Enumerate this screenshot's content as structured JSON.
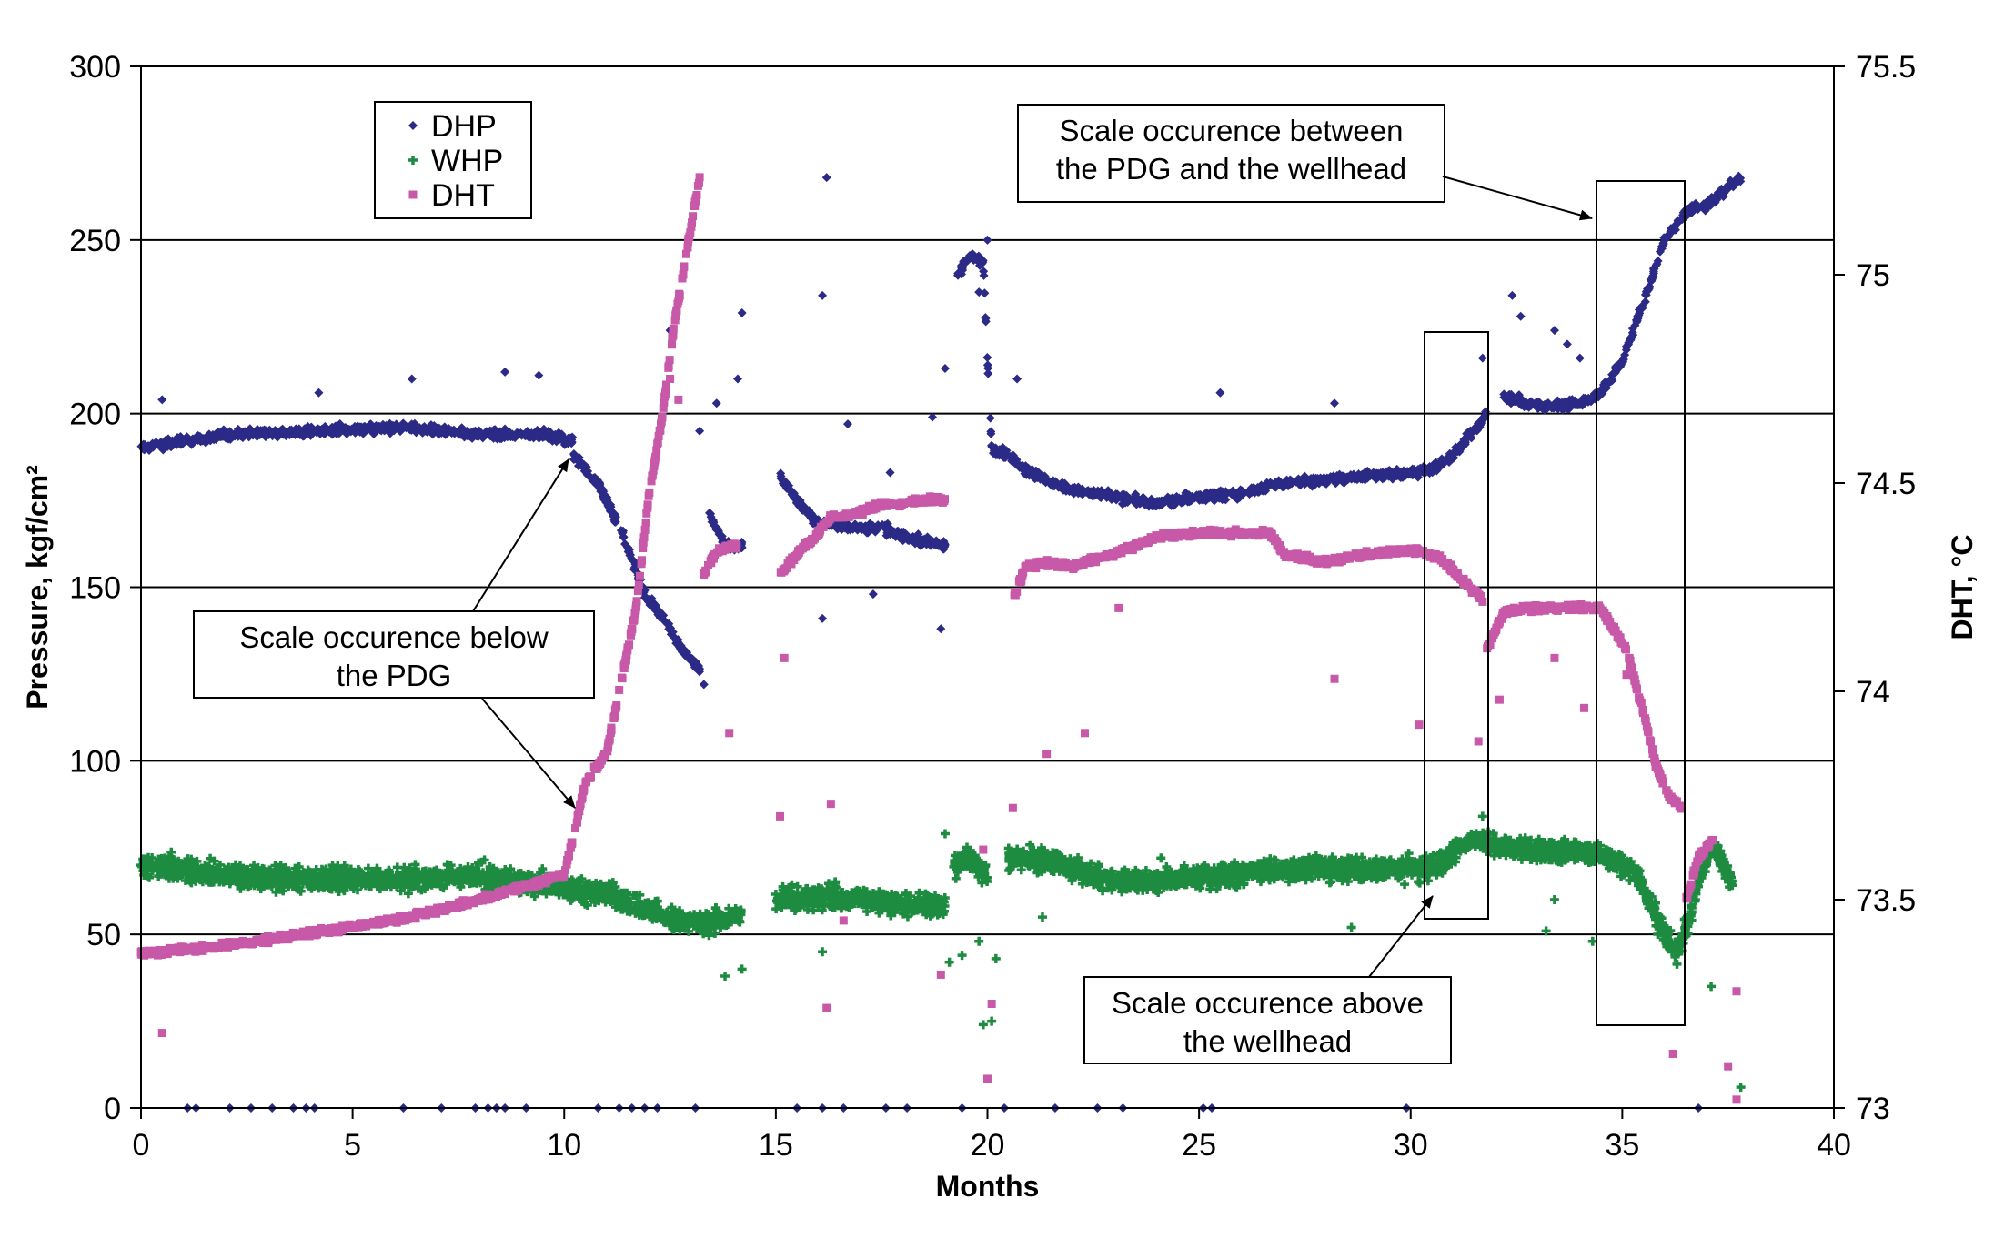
{
  "chart_data": {
    "type": "scatter",
    "title": "",
    "xlabel": "Months",
    "ylabel": "Pressure, kgf/cm²",
    "y2label": "DHT, °C",
    "xlim": [
      0,
      40
    ],
    "ylim": [
      0,
      300
    ],
    "y2lim": [
      73,
      75.5
    ],
    "xticks": [
      "0",
      "5",
      "10",
      "15",
      "20",
      "25",
      "30",
      "35",
      "40"
    ],
    "yticks": [
      "0",
      "50",
      "100",
      "150",
      "200",
      "250",
      "300"
    ],
    "y2ticks": [
      "73",
      "73.5",
      "74",
      "74.5",
      "75",
      "75.5"
    ],
    "grid": "horizontal",
    "legend_position": "top-left",
    "series": [
      {
        "name": "DHP",
        "axis": "left",
        "color": "#2b2a86",
        "marker": "diamond",
        "segments": [
          {
            "x": [
              0,
              2,
              4,
              6,
              8,
              9.5,
              10.2
            ],
            "y": [
              190,
              194,
              195,
              196,
              194,
              194,
              192
            ]
          },
          {
            "x": [
              10.2,
              10.8,
              11.4,
              11.9,
              12.4,
              12.8,
              13.2
            ],
            "y": [
              188,
              180,
              165,
              148,
              140,
              132,
              126
            ]
          },
          {
            "x": [
              13.4,
              13.8,
              14.2
            ],
            "y": [
              172,
              162,
              162
            ]
          },
          {
            "x": [
              15.1,
              15.5,
              16,
              16.5,
              17,
              17.5,
              18,
              18.5,
              19
            ],
            "y": [
              182,
              175,
              168,
              168,
              167,
              167,
              165,
              163,
              162
            ]
          },
          {
            "x": [
              19.3,
              19.6,
              19.9,
              20.1,
              20.5,
              21,
              22,
              23,
              24,
              25,
              26,
              27,
              28,
              29,
              30,
              30.5,
              31,
              31.5,
              31.8
            ],
            "y": [
              240,
              246,
              243,
              190,
              188,
              183,
              178,
              176,
              174,
              176,
              177,
              180,
              181,
              182,
              183,
              184,
              188,
              195,
              200
            ]
          },
          {
            "x": [
              32.2,
              32.7,
              33.2,
              34,
              34.5,
              35,
              35.5,
              36,
              36.5,
              37,
              37.5,
              37.8
            ],
            "y": [
              205,
              203,
              202,
              203,
              206,
              215,
              232,
              250,
              258,
              260,
              265,
              268
            ]
          }
        ],
        "outliers": [
          {
            "x": 16.2,
            "y": 268
          },
          {
            "x": 16.1,
            "y": 234
          },
          {
            "x": 14.2,
            "y": 229
          },
          {
            "x": 14.1,
            "y": 210
          },
          {
            "x": 20,
            "y": 250
          },
          {
            "x": 19.8,
            "y": 235
          },
          {
            "x": 19,
            "y": 213
          },
          {
            "x": 32.4,
            "y": 234
          },
          {
            "x": 32.6,
            "y": 228
          },
          {
            "x": 33.4,
            "y": 224
          },
          {
            "x": 33.7,
            "y": 220
          },
          {
            "x": 34,
            "y": 216
          },
          {
            "x": 31.7,
            "y": 216
          },
          {
            "x": 25.5,
            "y": 206
          },
          {
            "x": 28.2,
            "y": 203
          },
          {
            "x": 20.7,
            "y": 210
          },
          {
            "x": 13.3,
            "y": 122
          },
          {
            "x": 13.2,
            "y": 195
          },
          {
            "x": 12.5,
            "y": 224
          },
          {
            "x": 13.6,
            "y": 203
          },
          {
            "x": 16.1,
            "y": 141
          },
          {
            "x": 18.9,
            "y": 138
          },
          {
            "x": 17.3,
            "y": 148
          },
          {
            "x": 16.7,
            "y": 197
          },
          {
            "x": 17.7,
            "y": 183
          },
          {
            "x": 18.7,
            "y": 199
          },
          {
            "x": 8.6,
            "y": 212
          },
          {
            "x": 9.4,
            "y": 211
          },
          {
            "x": 6.4,
            "y": 210
          },
          {
            "x": 4.2,
            "y": 206
          },
          {
            "x": 0.5,
            "y": 204
          }
        ],
        "zeros": [
          1.1,
          1.3,
          2.1,
          2.6,
          3.1,
          3.6,
          3.9,
          4.1,
          6.2,
          7.1,
          7.9,
          8.2,
          8.4,
          8.6,
          9.1,
          10.8,
          11.3,
          11.6,
          11.9,
          12.2,
          13.1,
          15.5,
          16.1,
          16.6,
          17.6,
          18.1,
          19.4,
          20.4,
          21.6,
          22.6,
          23.2,
          25.1,
          25.3,
          29.9,
          36.8
        ]
      },
      {
        "name": "WHP",
        "axis": "left",
        "color": "#1e8c40",
        "marker": "cross",
        "segments": [
          {
            "x": [
              0,
              2,
              4,
              6,
              8,
              10,
              11,
              12,
              13,
              14.2
            ],
            "y": [
              70,
              67,
              66,
              66,
              67,
              63,
              62,
              57,
              53,
              55
            ]
          },
          {
            "x": [
              15,
              16,
              17,
              18,
              19
            ],
            "y": [
              60,
              61,
              60,
              59,
              58
            ]
          },
          {
            "x": [
              19.2,
              19.6,
              20
            ],
            "y": [
              70,
              72,
              66
            ]
          },
          {
            "x": [
              20.5,
              21.5,
              22.5,
              23.5,
              24.5,
              25.5,
              26.5,
              27.5,
              28.5,
              29.5,
              30.5,
              31.2,
              31.6,
              32,
              33,
              34,
              34.8,
              35.3,
              35.7,
              36,
              36.3,
              36.6,
              36.9,
              37.2,
              37.6
            ],
            "y": [
              72,
              71,
              67,
              65,
              66,
              67,
              68,
              69,
              69,
              69,
              69,
              75,
              78,
              76,
              74,
              74,
              72,
              68,
              58,
              50,
              45,
              55,
              70,
              75,
              65
            ]
          }
        ],
        "outliers": [
          {
            "x": 19.1,
            "y": 42
          },
          {
            "x": 19.4,
            "y": 44
          },
          {
            "x": 19.8,
            "y": 48
          },
          {
            "x": 20.1,
            "y": 25
          },
          {
            "x": 19.9,
            "y": 24
          },
          {
            "x": 20.2,
            "y": 43
          },
          {
            "x": 16.1,
            "y": 45
          },
          {
            "x": 14.2,
            "y": 40
          },
          {
            "x": 13.8,
            "y": 38
          },
          {
            "x": 21.3,
            "y": 55
          },
          {
            "x": 33.4,
            "y": 60
          },
          {
            "x": 34.3,
            "y": 48
          },
          {
            "x": 33.2,
            "y": 51
          },
          {
            "x": 31.7,
            "y": 84
          },
          {
            "x": 37.8,
            "y": 6
          },
          {
            "x": 37.1,
            "y": 35
          },
          {
            "x": 28.6,
            "y": 52
          },
          {
            "x": 24.1,
            "y": 72
          },
          {
            "x": 19,
            "y": 79
          }
        ]
      },
      {
        "name": "DHT",
        "axis": "right",
        "color": "#c759a8",
        "marker": "square",
        "segments": [
          {
            "x": [
              0,
              2,
              4,
              6,
              8,
              9,
              10,
              10.5,
              11,
              11.3,
              11.7,
              12,
              12.3,
              12.6,
              12.9,
              13.2
            ],
            "y": [
              73.37,
              73.39,
              73.42,
              73.45,
              73.5,
              73.53,
              73.56,
              73.78,
              73.85,
              74,
              74.2,
              74.47,
              74.65,
              74.88,
              75.06,
              75.23
            ]
          },
          {
            "x": [
              13.3,
              13.6,
              14.1
            ],
            "y": [
              74.28,
              74.34,
              74.35
            ]
          },
          {
            "x": [
              15.1,
              15.5,
              16,
              16.3,
              16.6,
              17,
              17.5,
              18,
              18.5,
              19
            ],
            "y": [
              74.28,
              74.33,
              74.38,
              74.42,
              74.42,
              74.43,
              74.45,
              74.45,
              74.46,
              74.46
            ]
          },
          {
            "x": [
              20.6,
              20.9,
              21.3,
              22,
              23,
              24,
              25,
              26,
              26.7,
              27,
              28,
              29,
              30,
              30.7,
              31,
              31.4,
              31.7
            ],
            "y": [
              74.22,
              74.3,
              74.31,
              74.3,
              74.33,
              74.37,
              74.38,
              74.38,
              74.38,
              74.33,
              74.31,
              74.33,
              74.34,
              74.32,
              74.29,
              74.25,
              74.22
            ]
          },
          {
            "x": [
              31.8,
              32.2,
              32.7,
              33.5,
              34.5,
              35.1,
              35.5,
              35.8,
              36.1,
              36.4
            ],
            "y": [
              74.1,
              74.19,
              74.2,
              74.2,
              74.2,
              74.1,
              73.95,
              73.82,
              73.75,
              73.72
            ]
          },
          {
            "x": [
              36.5,
              36.8,
              37.2
            ],
            "y": [
              73.5,
              73.6,
              73.65
            ]
          }
        ],
        "outliers": [
          {
            "x": 0.5,
            "y": 73.18
          },
          {
            "x": 15.1,
            "y": 73.7
          },
          {
            "x": 15.2,
            "y": 74.08
          },
          {
            "x": 16.3,
            "y": 73.73
          },
          {
            "x": 16.2,
            "y": 73.24
          },
          {
            "x": 16.6,
            "y": 73.45
          },
          {
            "x": 18.9,
            "y": 73.32
          },
          {
            "x": 20,
            "y": 73.07
          },
          {
            "x": 20.1,
            "y": 73.25
          },
          {
            "x": 19.9,
            "y": 73.62
          },
          {
            "x": 20.6,
            "y": 73.72
          },
          {
            "x": 21.4,
            "y": 73.85
          },
          {
            "x": 22.3,
            "y": 73.9
          },
          {
            "x": 23.1,
            "y": 74.2
          },
          {
            "x": 28.2,
            "y": 74.03
          },
          {
            "x": 30.2,
            "y": 73.92
          },
          {
            "x": 31.6,
            "y": 73.88
          },
          {
            "x": 33.4,
            "y": 74.08
          },
          {
            "x": 34.1,
            "y": 73.96
          },
          {
            "x": 32.1,
            "y": 73.98
          },
          {
            "x": 35.1,
            "y": 74.04
          },
          {
            "x": 36.2,
            "y": 73.13
          },
          {
            "x": 37.7,
            "y": 73.28
          },
          {
            "x": 37.5,
            "y": 73.1
          },
          {
            "x": 37.7,
            "y": 73.02
          },
          {
            "x": 13.9,
            "y": 73.9
          },
          {
            "x": 13.3,
            "y": 74.28
          },
          {
            "x": 12.7,
            "y": 74.7
          },
          {
            "x": 12.5,
            "y": 74.75
          }
        ]
      }
    ],
    "annotations": [
      {
        "text": [
          "Scale occurence below",
          "the PDG"
        ]
      },
      {
        "text": [
          "Scale occurence above",
          "the wellhead"
        ]
      },
      {
        "text": [
          "Scale occurence between",
          "the PDG and the wellhead"
        ]
      }
    ]
  }
}
